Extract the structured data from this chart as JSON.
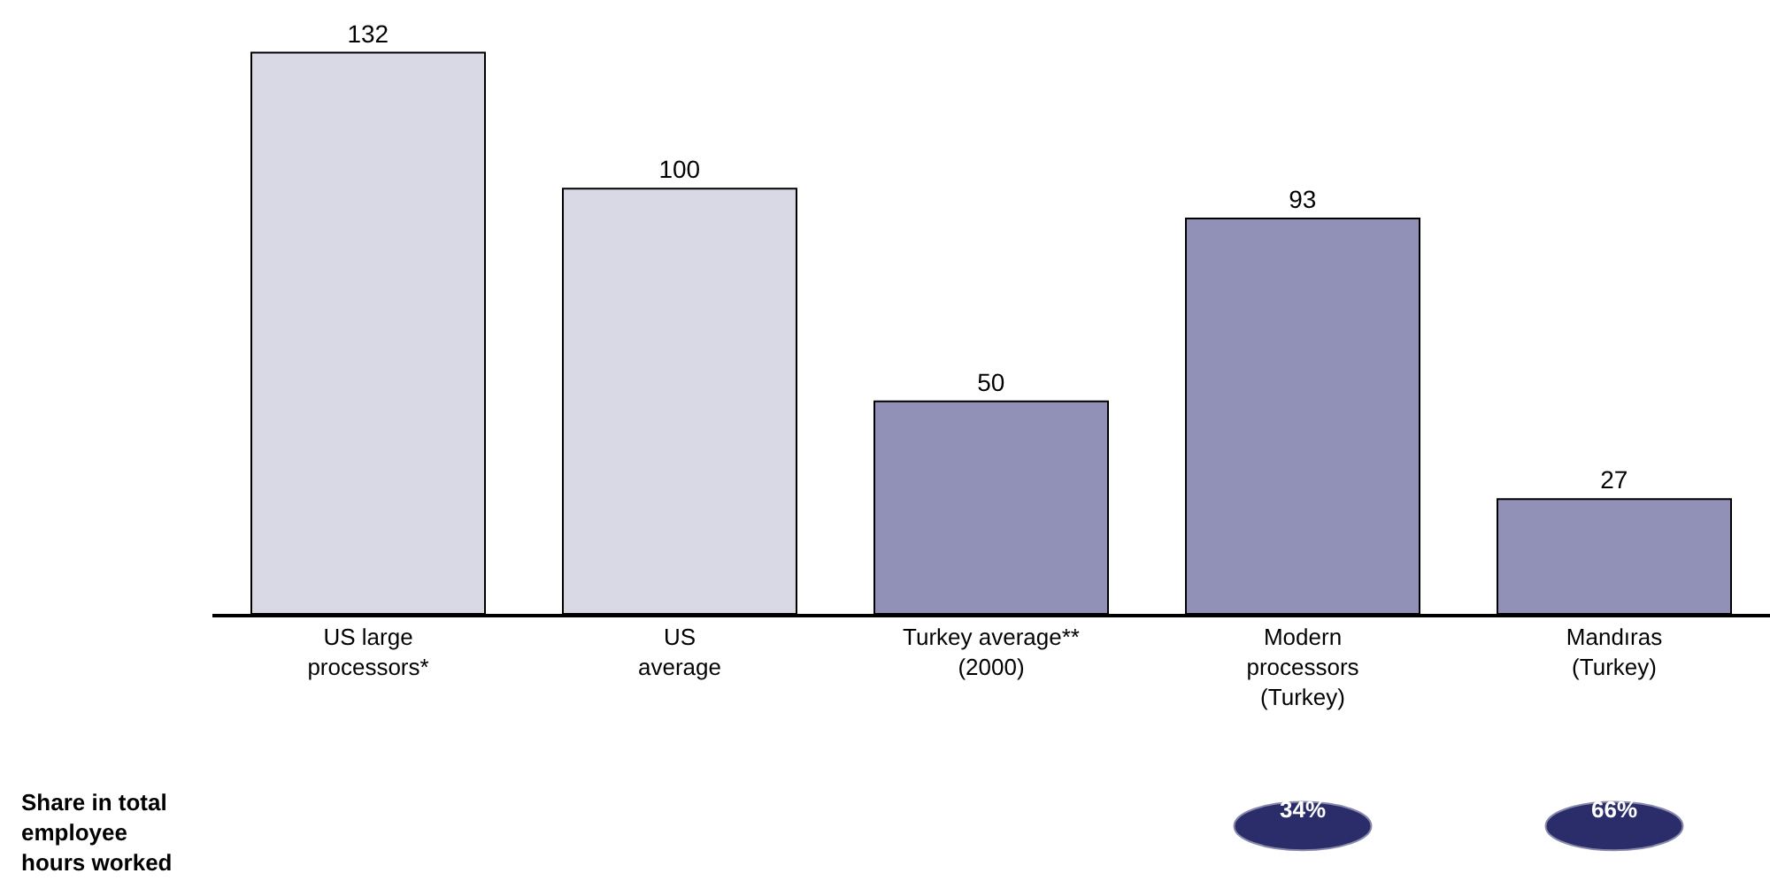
{
  "chart_data": {
    "type": "bar",
    "categories": [
      "US large\nprocessors*",
      "US\naverage",
      "Turkey average**\n(2000)",
      "Modern\nprocessors\n(Turkey)",
      "Mandıras\n(Turkey)"
    ],
    "values": [
      132,
      100,
      50,
      93,
      27
    ],
    "colors": [
      "#d9d9e5",
      "#d9d9e5",
      "#9191b8",
      "#9191b8",
      "#9191b8"
    ],
    "data_labels": true,
    "grid": false,
    "legend": false,
    "annotations": [
      "Share in total\nemployee\nhours worked",
      "34%",
      "66%"
    ]
  }
}
